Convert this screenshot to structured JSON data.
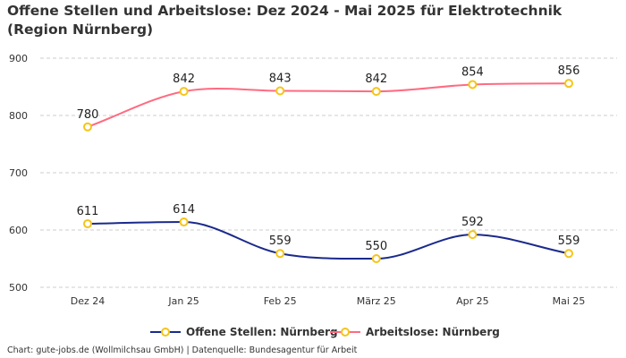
{
  "chart_data": {
    "type": "line",
    "title": "Offene Stellen und Arbeitslose: Dez 2024 - Mai 2025 für Elektrotechnik (Region Nürnberg)",
    "categories": [
      "Dez 24",
      "Jan 25",
      "Feb 25",
      "März 25",
      "Apr 25",
      "Mai 25"
    ],
    "yticks": [
      "500",
      "600",
      "700",
      "800",
      "900"
    ],
    "ylim": [
      500,
      900
    ],
    "grid": true,
    "legend_position": "bottom",
    "series": [
      {
        "name": "Offene Stellen: Nürnberg",
        "values": [
          611,
          614,
          559,
          550,
          592,
          559
        ],
        "color": "#1a2a8c"
      },
      {
        "name": "Arbeitslose: Nürnberg",
        "values": [
          780,
          842,
          843,
          842,
          854,
          856
        ],
        "color": "#ff6b81"
      }
    ],
    "marker_color": "#f5c518"
  },
  "credit": "Chart: gute-jobs.de (Wollmilchsau GmbH) | Datenquelle: Bundesagentur für Arbeit"
}
